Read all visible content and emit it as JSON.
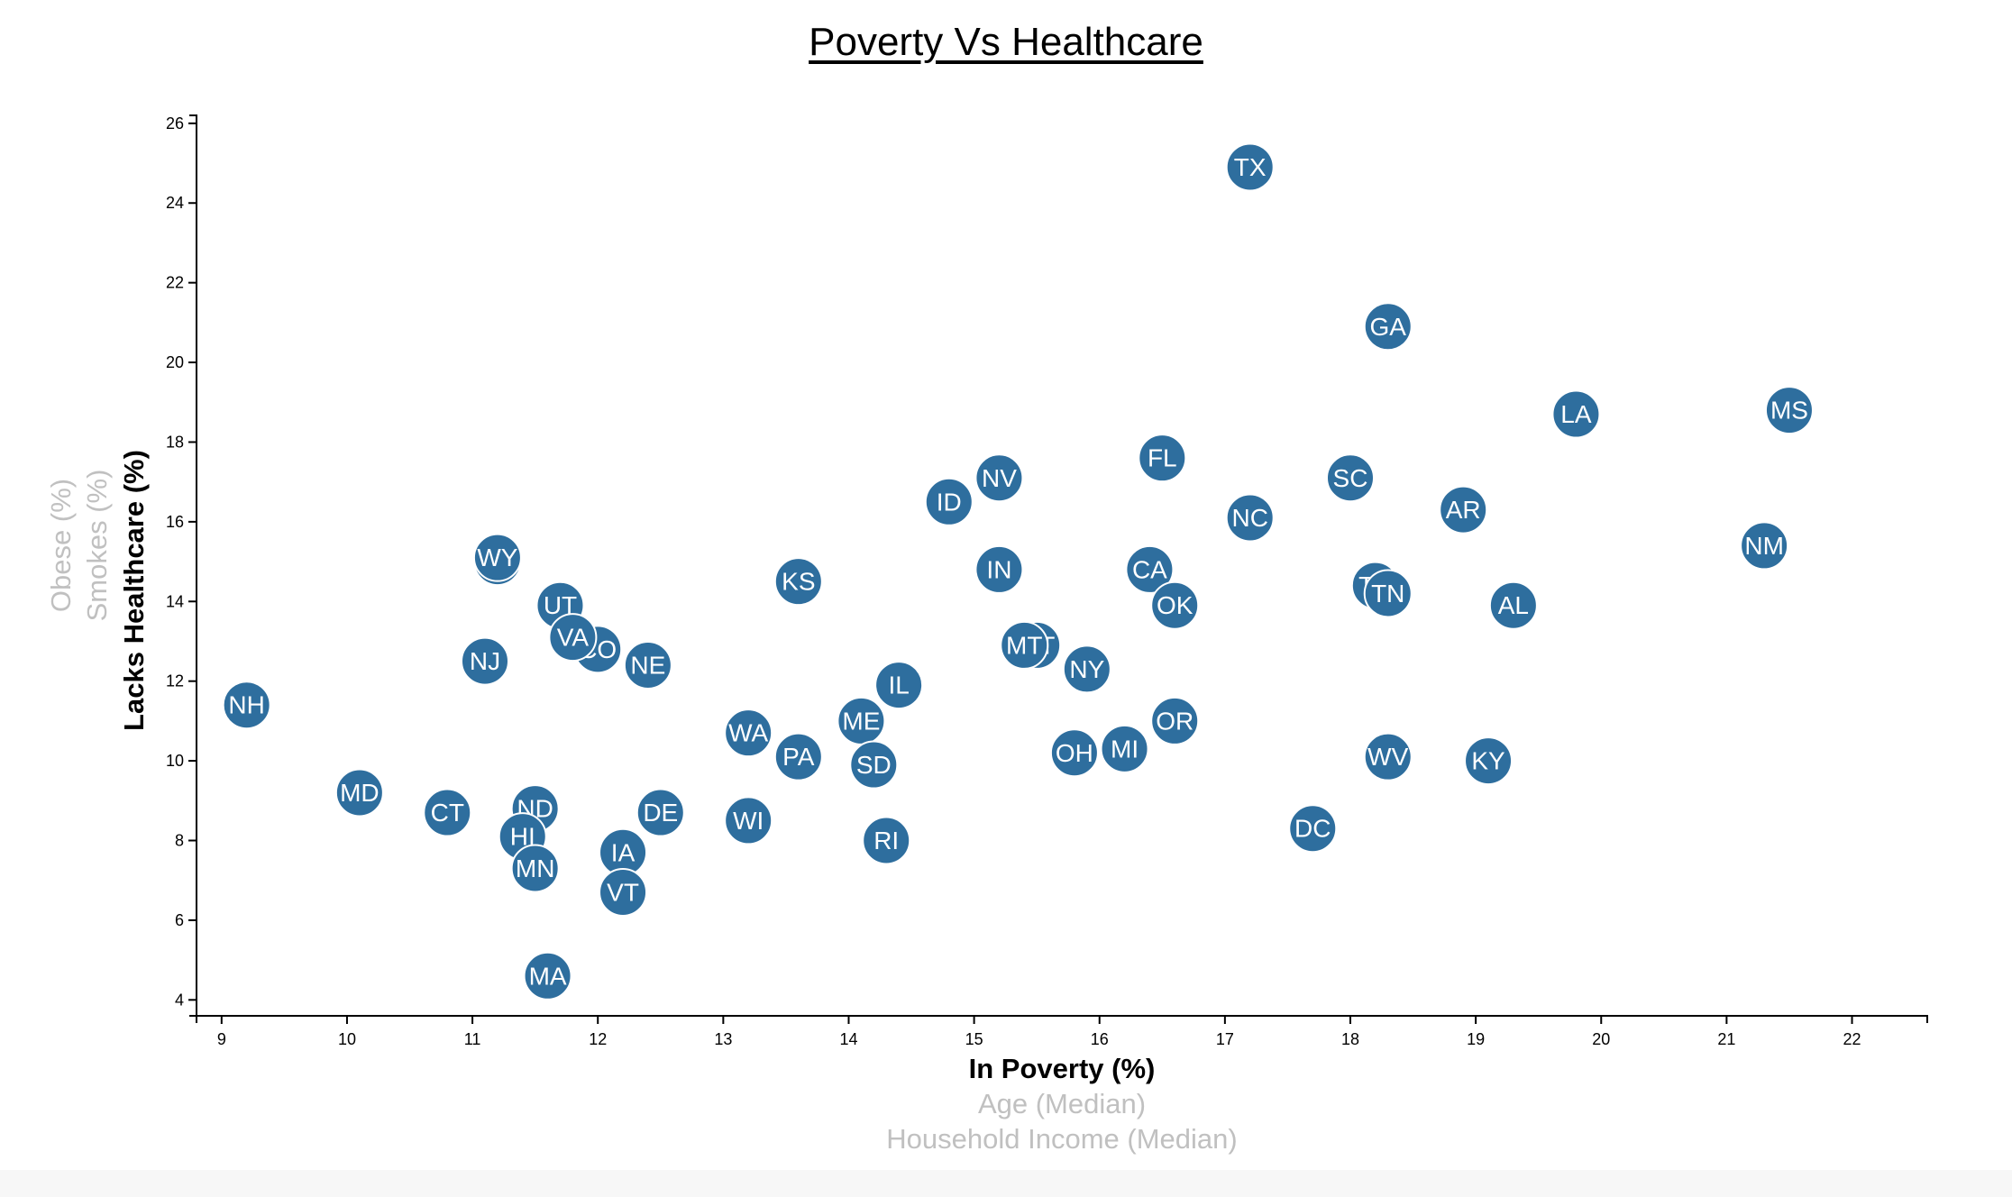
{
  "title": "Poverty Vs Healthcare",
  "colors": {
    "circle_fill": "#2e6e9e",
    "circle_stroke": "#ffffff",
    "active_label": "#000000",
    "inactive_label": "#c0c0c0"
  },
  "axis_labels": {
    "x": [
      {
        "text": "In Poverty (%)",
        "active": true
      },
      {
        "text": "Age (Median)",
        "active": false
      },
      {
        "text": "Household Income (Median)",
        "active": false
      }
    ],
    "y": [
      {
        "text": "Lacks Healthcare (%)",
        "active": true
      },
      {
        "text": "Smokes (%)",
        "active": false
      },
      {
        "text": "Obese (%)",
        "active": false
      }
    ]
  },
  "chart_data": {
    "type": "scatter",
    "title": "Poverty Vs Healthcare",
    "xlabel": "In Poverty (%)",
    "ylabel": "Lacks Healthcare (%)",
    "xlim": [
      8.8,
      22.6
    ],
    "ylim": [
      3.6,
      26.2
    ],
    "xticks": [
      9,
      10,
      11,
      12,
      13,
      14,
      15,
      16,
      17,
      18,
      19,
      20,
      21,
      22
    ],
    "yticks": [
      4,
      6,
      8,
      10,
      12,
      14,
      16,
      18,
      20,
      22,
      24,
      26
    ],
    "grid": false,
    "points": [
      {
        "abbr": "TX",
        "x": 17.2,
        "y": 24.9
      },
      {
        "abbr": "GA",
        "x": 18.3,
        "y": 20.9
      },
      {
        "abbr": "LA",
        "x": 19.8,
        "y": 18.7
      },
      {
        "abbr": "MS",
        "x": 21.5,
        "y": 18.8
      },
      {
        "abbr": "FL",
        "x": 16.5,
        "y": 17.6
      },
      {
        "abbr": "NV",
        "x": 15.2,
        "y": 17.1
      },
      {
        "abbr": "SC",
        "x": 18.0,
        "y": 17.1
      },
      {
        "abbr": "ID",
        "x": 14.8,
        "y": 16.5
      },
      {
        "abbr": "AR",
        "x": 18.9,
        "y": 16.3
      },
      {
        "abbr": "NC",
        "x": 17.2,
        "y": 16.1
      },
      {
        "abbr": "NM",
        "x": 21.3,
        "y": 15.4
      },
      {
        "abbr": "MT",
        "x": 15.5,
        "y": 12.9
      },
      {
        "abbr": "MT",
        "x": 15.4,
        "y": 12.9
      },
      {
        "abbr": "WY",
        "x": 11.2,
        "y": 15.0
      },
      {
        "abbr": "WY",
        "x": 11.2,
        "y": 15.1
      },
      {
        "abbr": "IN",
        "x": 15.2,
        "y": 14.8
      },
      {
        "abbr": "CA",
        "x": 16.4,
        "y": 14.8
      },
      {
        "abbr": "KS",
        "x": 13.6,
        "y": 14.5
      },
      {
        "abbr": "TN",
        "x": 18.2,
        "y": 14.4
      },
      {
        "abbr": "TN",
        "x": 18.3,
        "y": 14.2
      },
      {
        "abbr": "UT",
        "x": 11.7,
        "y": 13.9
      },
      {
        "abbr": "OK",
        "x": 16.6,
        "y": 13.9
      },
      {
        "abbr": "AL",
        "x": 19.3,
        "y": 13.9
      },
      {
        "abbr": "CO",
        "x": 12.0,
        "y": 12.8
      },
      {
        "abbr": "VA",
        "x": 11.8,
        "y": 13.1
      },
      {
        "abbr": "NJ",
        "x": 11.1,
        "y": 12.5
      },
      {
        "abbr": "NE",
        "x": 12.4,
        "y": 12.4
      },
      {
        "abbr": "NY",
        "x": 15.9,
        "y": 12.3
      },
      {
        "abbr": "IL",
        "x": 14.4,
        "y": 11.9
      },
      {
        "abbr": "NH",
        "x": 9.2,
        "y": 11.4
      },
      {
        "abbr": "ME",
        "x": 14.1,
        "y": 11.0
      },
      {
        "abbr": "OR",
        "x": 16.6,
        "y": 11.0
      },
      {
        "abbr": "WA",
        "x": 13.2,
        "y": 10.7
      },
      {
        "abbr": "OH",
        "x": 15.8,
        "y": 10.2
      },
      {
        "abbr": "MI",
        "x": 16.2,
        "y": 10.3
      },
      {
        "abbr": "PA",
        "x": 13.6,
        "y": 10.1
      },
      {
        "abbr": "WV",
        "x": 18.3,
        "y": 10.1
      },
      {
        "abbr": "KY",
        "x": 19.1,
        "y": 10.0
      },
      {
        "abbr": "SD",
        "x": 14.2,
        "y": 9.9
      },
      {
        "abbr": "MD",
        "x": 10.1,
        "y": 9.2
      },
      {
        "abbr": "CT",
        "x": 10.8,
        "y": 8.7
      },
      {
        "abbr": "ND",
        "x": 11.5,
        "y": 8.8
      },
      {
        "abbr": "DE",
        "x": 12.5,
        "y": 8.7
      },
      {
        "abbr": "WI",
        "x": 13.2,
        "y": 8.5
      },
      {
        "abbr": "DC",
        "x": 17.7,
        "y": 8.3
      },
      {
        "abbr": "HI",
        "x": 11.4,
        "y": 8.1
      },
      {
        "abbr": "RI",
        "x": 14.3,
        "y": 8.0
      },
      {
        "abbr": "IA",
        "x": 12.2,
        "y": 7.7
      },
      {
        "abbr": "MN",
        "x": 11.5,
        "y": 7.3
      },
      {
        "abbr": "VT",
        "x": 12.2,
        "y": 6.7
      },
      {
        "abbr": "MA",
        "x": 11.6,
        "y": 4.6
      }
    ]
  }
}
